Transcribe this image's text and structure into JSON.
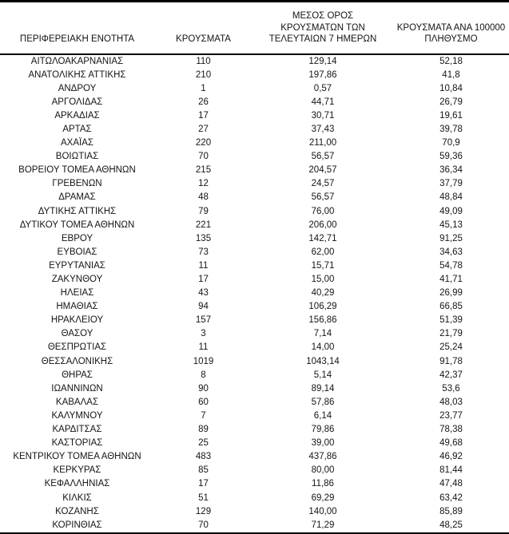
{
  "colors": {
    "background": "#ffffff",
    "text": "#151515",
    "rule": "#000000"
  },
  "table": {
    "headers": [
      "ΠΕΡΙΦΕΡΕΙΑΚΗ ΕΝΟΤΗΤΑ",
      "ΚΡΟΥΣΜΑΤΑ",
      "ΜΕΣΟΣ ΟΡΟΣ\nΚΡΟΥΣΜΑΤΩΝ ΤΩΝ\nΤΕΛΕΥΤΑΙΩΝ 7 ΗΜΕΡΩΝ",
      "ΚΡΟΥΣΜΑΤΑ ΑΝΑ 100000\nΠΛΗΘΥΣΜΟ"
    ],
    "rows": [
      [
        "ΑΙΤΩΛΟΑΚΑΡΝΑΝΙΑΣ",
        "110",
        "129,14",
        "52,18"
      ],
      [
        "ΑΝΑΤΟΛΙΚΗΣ ΑΤΤΙΚΗΣ",
        "210",
        "197,86",
        "41,8"
      ],
      [
        "ΑΝΔΡΟΥ",
        "1",
        "0,57",
        "10,84"
      ],
      [
        "ΑΡΓΟΛΙΔΑΣ",
        "26",
        "44,71",
        "26,79"
      ],
      [
        "ΑΡΚΑΔΙΑΣ",
        "17",
        "30,71",
        "19,61"
      ],
      [
        "ΑΡΤΑΣ",
        "27",
        "37,43",
        "39,78"
      ],
      [
        "ΑΧΑΪΑΣ",
        "220",
        "211,00",
        "70,9"
      ],
      [
        "ΒΟΙΩΤΙΑΣ",
        "70",
        "56,57",
        "59,36"
      ],
      [
        "ΒΟΡΕΙΟΥ ΤΟΜΕΑ ΑΘΗΝΩΝ",
        "215",
        "204,57",
        "36,34"
      ],
      [
        "ΓΡΕΒΕΝΩΝ",
        "12",
        "24,57",
        "37,79"
      ],
      [
        "ΔΡΑΜΑΣ",
        "48",
        "56,57",
        "48,84"
      ],
      [
        "ΔΥΤΙΚΗΣ ΑΤΤΙΚΗΣ",
        "79",
        "76,00",
        "49,09"
      ],
      [
        "ΔΥΤΙΚΟΥ ΤΟΜΕΑ ΑΘΗΝΩΝ",
        "221",
        "206,00",
        "45,13"
      ],
      [
        "ΕΒΡΟΥ",
        "135",
        "142,71",
        "91,25"
      ],
      [
        "ΕΥΒΟΙΑΣ",
        "73",
        "62,00",
        "34,63"
      ],
      [
        "ΕΥΡΥΤΑΝΙΑΣ",
        "11",
        "15,71",
        "54,78"
      ],
      [
        "ΖΑΚΥΝΘΟΥ",
        "17",
        "15,00",
        "41,71"
      ],
      [
        "ΗΛΕΙΑΣ",
        "43",
        "40,29",
        "26,99"
      ],
      [
        "ΗΜΑΘΙΑΣ",
        "94",
        "106,29",
        "66,85"
      ],
      [
        "ΗΡΑΚΛΕΙΟΥ",
        "157",
        "156,86",
        "51,39"
      ],
      [
        "ΘΑΣΟΥ",
        "3",
        "7,14",
        "21,79"
      ],
      [
        "ΘΕΣΠΡΩΤΙΑΣ",
        "11",
        "14,00",
        "25,24"
      ],
      [
        "ΘΕΣΣΑΛΟΝΙΚΗΣ",
        "1019",
        "1043,14",
        "91,78"
      ],
      [
        "ΘΗΡΑΣ",
        "8",
        "5,14",
        "42,37"
      ],
      [
        "ΙΩΑΝΝΙΝΩΝ",
        "90",
        "89,14",
        "53,6"
      ],
      [
        "ΚΑΒΑΛΑΣ",
        "60",
        "57,86",
        "48,03"
      ],
      [
        "ΚΑΛΥΜΝΟΥ",
        "7",
        "6,14",
        "23,77"
      ],
      [
        "ΚΑΡΔΙΤΣΑΣ",
        "89",
        "79,86",
        "78,38"
      ],
      [
        "ΚΑΣΤΟΡΙΑΣ",
        "25",
        "39,00",
        "49,68"
      ],
      [
        "ΚΕΝΤΡΙΚΟΥ ΤΟΜΕΑ ΑΘΗΝΩΝ",
        "483",
        "437,86",
        "46,92"
      ],
      [
        "ΚΕΡΚΥΡΑΣ",
        "85",
        "80,00",
        "81,44"
      ],
      [
        "ΚΕΦΑΛΛΗΝΙΑΣ",
        "17",
        "11,86",
        "47,48"
      ],
      [
        "ΚΙΛΚΙΣ",
        "51",
        "69,29",
        "63,42"
      ],
      [
        "ΚΟΖΑΝΗΣ",
        "129",
        "140,00",
        "85,89"
      ],
      [
        "ΚΟΡΙΝΘΙΑΣ",
        "70",
        "71,29",
        "48,25"
      ]
    ]
  }
}
